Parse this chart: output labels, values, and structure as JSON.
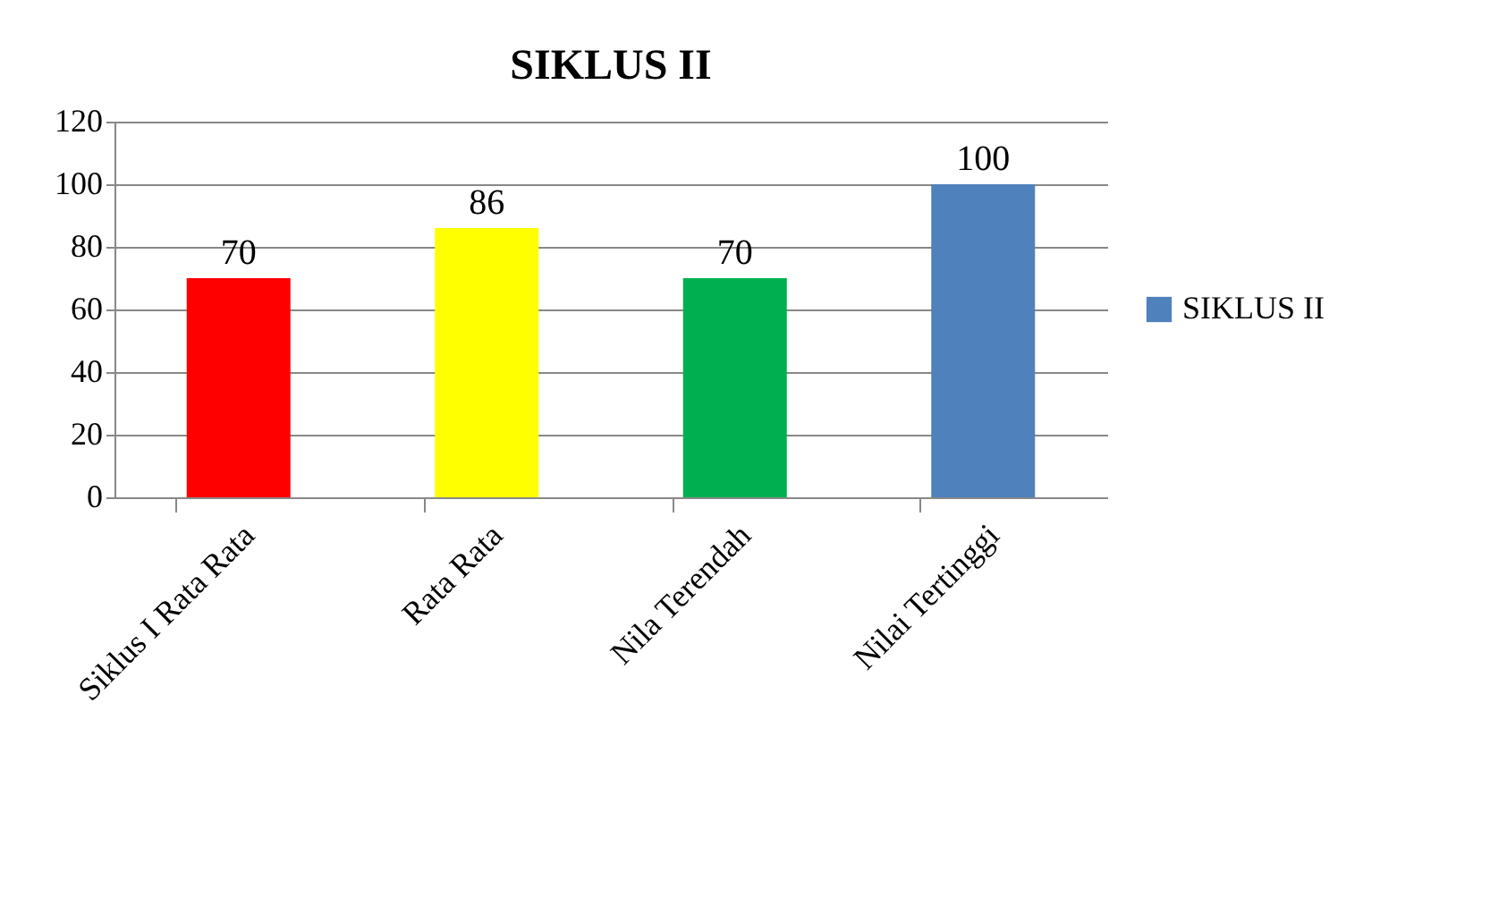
{
  "chart_data": {
    "type": "bar",
    "title": "SIKLUS II",
    "categories": [
      "Siklus I Rata Rata",
      "Rata Rata",
      "Nila Terendah",
      "Nilai Tertinggi"
    ],
    "series": [
      {
        "name": "SIKLUS II",
        "color": "#4f81bd",
        "colors": [
          "#ff0000",
          "#ffff00",
          "#00b050",
          "#4f81bd"
        ],
        "values": [
          70,
          86,
          70,
          100
        ]
      }
    ],
    "ylim": [
      0,
      120
    ],
    "yticks": [
      0,
      20,
      40,
      60,
      80,
      100,
      120
    ],
    "grid": "y",
    "legend": "right",
    "data_labels": true
  }
}
